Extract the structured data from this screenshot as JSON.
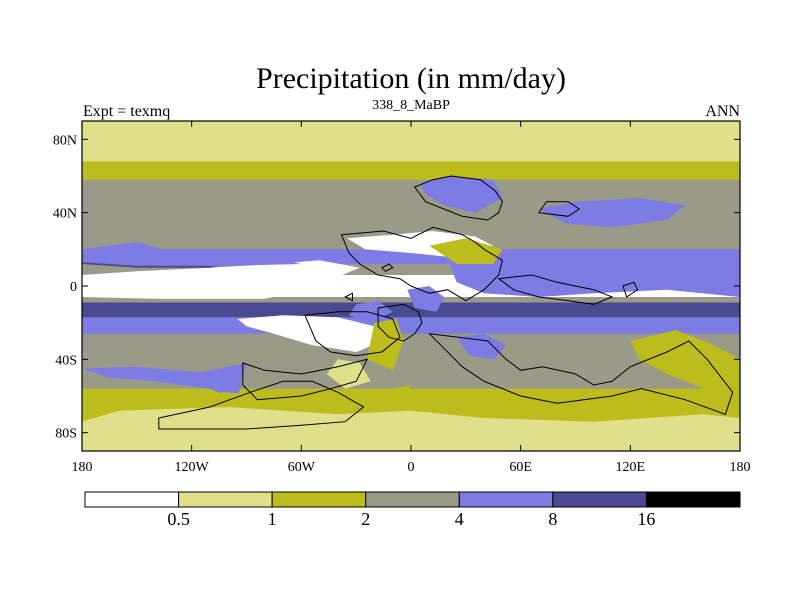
{
  "chart_data": {
    "type": "heatmap",
    "title": "Precipitation (in mm/day)",
    "subtitle_left": "Expt = texmq",
    "subtitle_center": "338_8_MaBP",
    "subtitle_right": "ANN",
    "x_range": [
      -180,
      180
    ],
    "y_range": [
      -90,
      90
    ],
    "x_ticks": [
      {
        "value": -180,
        "label": "180"
      },
      {
        "value": -120,
        "label": "120W"
      },
      {
        "value": -60,
        "label": "60W"
      },
      {
        "value": 0,
        "label": "0"
      },
      {
        "value": 60,
        "label": "60E"
      },
      {
        "value": 120,
        "label": "120E"
      },
      {
        "value": 180,
        "label": "180"
      }
    ],
    "y_ticks": [
      {
        "value": 80,
        "label": "80N"
      },
      {
        "value": 40,
        "label": "40N"
      },
      {
        "value": 0,
        "label": "0"
      },
      {
        "value": -40,
        "label": "40S"
      },
      {
        "value": -80,
        "label": "80S"
      }
    ],
    "levels": [
      0.5,
      1,
      2,
      4,
      8,
      16
    ],
    "level_labels": [
      "0.5",
      "1",
      "2",
      "4",
      "8",
      "16"
    ],
    "colors": [
      "#ffffff",
      "#e0e08a",
      "#bcbc1c",
      "#9a9a88",
      "#7c7ce4",
      "#4a4a90",
      "#000000"
    ],
    "zonal_bands": [
      {
        "lat_min": 82,
        "lat_max": 90,
        "level": 1
      },
      {
        "lat_min": 68,
        "lat_max": 82,
        "level": 1
      },
      {
        "lat_min": 58,
        "lat_max": 68,
        "level": 2
      },
      {
        "lat_min": 20,
        "lat_max": 58,
        "level": 3
      },
      {
        "lat_min": 12,
        "lat_max": 20,
        "level": 4
      },
      {
        "lat_min": 6,
        "lat_max": 12,
        "level": 3
      },
      {
        "lat_min": -6,
        "lat_max": 6,
        "level": 0
      },
      {
        "lat_min": -9,
        "lat_max": -6,
        "level": 3
      },
      {
        "lat_min": -17,
        "lat_max": -9,
        "level": 5
      },
      {
        "lat_min": -26,
        "lat_max": -17,
        "level": 4
      },
      {
        "lat_min": -32,
        "lat_max": -26,
        "level": 3
      },
      {
        "lat_min": -46,
        "lat_max": -32,
        "level": 3
      },
      {
        "lat_min": -56,
        "lat_max": -46,
        "level": 3
      },
      {
        "lat_min": -66,
        "lat_max": -56,
        "level": 2
      },
      {
        "lat_min": -80,
        "lat_max": -66,
        "level": 2
      },
      {
        "lat_min": -90,
        "lat_max": -80,
        "level": 1
      }
    ],
    "patches": [
      {
        "level": 0,
        "points": [
          [
            -180,
            6
          ],
          [
            -150,
            8
          ],
          [
            -110,
            10
          ],
          [
            -75,
            12
          ],
          [
            -50,
            14
          ],
          [
            -28,
            10
          ],
          [
            -40,
            5
          ],
          [
            -80,
            3
          ],
          [
            -130,
            2
          ],
          [
            -180,
            2
          ]
        ]
      },
      {
        "level": 0,
        "points": [
          [
            -180,
            -2
          ],
          [
            -130,
            -3
          ],
          [
            -90,
            -4
          ],
          [
            -60,
            -3
          ],
          [
            -80,
            -7
          ],
          [
            -140,
            -7
          ],
          [
            -180,
            -6
          ]
        ]
      },
      {
        "level": 0,
        "points": [
          [
            -95,
            -18
          ],
          [
            -70,
            -16
          ],
          [
            -40,
            -17
          ],
          [
            -20,
            -22
          ],
          [
            -15,
            -30
          ],
          [
            -30,
            -36
          ],
          [
            -55,
            -32
          ],
          [
            -75,
            -26
          ],
          [
            -90,
            -22
          ]
        ]
      },
      {
        "level": 0,
        "points": [
          [
            -35,
            26
          ],
          [
            -10,
            28
          ],
          [
            12,
            30
          ],
          [
            35,
            27
          ],
          [
            45,
            22
          ],
          [
            20,
            16
          ],
          [
            0,
            18
          ],
          [
            -25,
            20
          ]
        ]
      },
      {
        "level": 5,
        "points": [
          [
            -180,
            15
          ],
          [
            -150,
            14
          ],
          [
            -120,
            13
          ],
          [
            -100,
            12
          ],
          [
            -110,
            10
          ],
          [
            -150,
            10
          ],
          [
            -180,
            12
          ]
        ]
      },
      {
        "level": 5,
        "points": [
          [
            35,
            2
          ],
          [
            65,
            5
          ],
          [
            100,
            8
          ],
          [
            130,
            9
          ],
          [
            160,
            10
          ],
          [
            180,
            10
          ],
          [
            180,
            4
          ],
          [
            150,
            2
          ],
          [
            110,
            0
          ],
          [
            70,
            -2
          ],
          [
            45,
            -3
          ]
        ]
      },
      {
        "level": 4,
        "points": [
          [
            -180,
            20
          ],
          [
            -150,
            24
          ],
          [
            -130,
            18
          ],
          [
            -100,
            16
          ],
          [
            -70,
            14
          ],
          [
            -60,
            12
          ],
          [
            -100,
            11
          ],
          [
            -150,
            11
          ],
          [
            -180,
            13
          ]
        ]
      },
      {
        "level": 4,
        "points": [
          [
            20,
            15
          ],
          [
            60,
            18
          ],
          [
            100,
            14
          ],
          [
            140,
            12
          ],
          [
            180,
            14
          ],
          [
            180,
            -6
          ],
          [
            140,
            -2
          ],
          [
            100,
            -4
          ],
          [
            70,
            -6
          ],
          [
            40,
            -4
          ],
          [
            25,
            2
          ]
        ]
      },
      {
        "level": 4,
        "points": [
          [
            -2,
            -2
          ],
          [
            10,
            0
          ],
          [
            18,
            -6
          ],
          [
            14,
            -14
          ],
          [
            2,
            -12
          ]
        ]
      },
      {
        "level": 4,
        "points": [
          [
            -30,
            -10
          ],
          [
            -18,
            -8
          ],
          [
            -10,
            -14
          ],
          [
            -22,
            -20
          ],
          [
            -34,
            -16
          ]
        ]
      },
      {
        "level": 4,
        "points": [
          [
            5,
            56
          ],
          [
            20,
            60
          ],
          [
            45,
            58
          ],
          [
            50,
            48
          ],
          [
            35,
            40
          ],
          [
            18,
            44
          ],
          [
            8,
            50
          ]
        ]
      },
      {
        "level": 4,
        "points": [
          [
            70,
            42
          ],
          [
            90,
            46
          ],
          [
            125,
            48
          ],
          [
            150,
            44
          ],
          [
            140,
            36
          ],
          [
            110,
            32
          ],
          [
            85,
            34
          ]
        ]
      },
      {
        "level": 4,
        "points": [
          [
            -180,
            -45
          ],
          [
            -165,
            -50
          ],
          [
            -140,
            -52
          ],
          [
            -110,
            -56
          ],
          [
            -95,
            -62
          ],
          [
            -90,
            -42
          ],
          [
            -115,
            -47
          ],
          [
            -150,
            -44
          ]
        ]
      },
      {
        "level": 4,
        "points": [
          [
            25,
            -28
          ],
          [
            40,
            -26
          ],
          [
            52,
            -32
          ],
          [
            46,
            -40
          ],
          [
            32,
            -38
          ]
        ]
      },
      {
        "level": 2,
        "points": [
          [
            -180,
            -62
          ],
          [
            -140,
            -60
          ],
          [
            -100,
            -58
          ],
          [
            -60,
            -62
          ],
          [
            -20,
            -58
          ],
          [
            0,
            -54
          ],
          [
            -10,
            -70
          ],
          [
            -60,
            -76
          ],
          [
            -120,
            -74
          ],
          [
            -180,
            -72
          ]
        ]
      },
      {
        "level": 2,
        "points": [
          [
            120,
            -30
          ],
          [
            145,
            -24
          ],
          [
            165,
            -32
          ],
          [
            180,
            -40
          ],
          [
            180,
            -58
          ],
          [
            160,
            -56
          ],
          [
            140,
            -48
          ],
          [
            125,
            -40
          ]
        ]
      },
      {
        "level": 2,
        "points": [
          [
            -20,
            -20
          ],
          [
            -8,
            -18
          ],
          [
            -4,
            -30
          ],
          [
            -10,
            -46
          ],
          [
            -24,
            -40
          ]
        ]
      },
      {
        "level": 2,
        "points": [
          [
            10,
            22
          ],
          [
            30,
            26
          ],
          [
            50,
            20
          ],
          [
            45,
            12
          ],
          [
            25,
            12
          ]
        ]
      },
      {
        "level": 1,
        "points": [
          [
            -160,
            -68
          ],
          [
            -100,
            -66
          ],
          [
            -40,
            -70
          ],
          [
            0,
            -68
          ],
          [
            40,
            -72
          ],
          [
            100,
            -74
          ],
          [
            160,
            -70
          ],
          [
            180,
            -72
          ],
          [
            180,
            -82
          ],
          [
            -180,
            -82
          ],
          [
            -180,
            -74
          ]
        ]
      },
      {
        "level": 1,
        "points": [
          [
            -40,
            -40
          ],
          [
            -28,
            -42
          ],
          [
            -22,
            -52
          ],
          [
            -36,
            -56
          ],
          [
            -46,
            -48
          ]
        ]
      }
    ],
    "coastlines": [
      [
        [
          -38,
          28
        ],
        [
          -15,
          30
        ],
        [
          0,
          26
        ],
        [
          12,
          32
        ],
        [
          28,
          28
        ],
        [
          35,
          24
        ],
        [
          40,
          20
        ],
        [
          50,
          14
        ],
        [
          48,
          6
        ],
        [
          40,
          -2
        ],
        [
          30,
          -8
        ],
        [
          20,
          -2
        ],
        [
          10,
          -4
        ],
        [
          0,
          0
        ],
        [
          -6,
          4
        ],
        [
          -18,
          6
        ],
        [
          -28,
          12
        ],
        [
          -34,
          18
        ]
      ],
      [
        [
          2,
          54
        ],
        [
          12,
          58
        ],
        [
          22,
          60
        ],
        [
          38,
          58
        ],
        [
          46,
          52
        ],
        [
          50,
          46
        ],
        [
          48,
          40
        ],
        [
          42,
          36
        ],
        [
          28,
          38
        ],
        [
          18,
          42
        ],
        [
          8,
          46
        ]
      ],
      [
        [
          -18,
          -12
        ],
        [
          -4,
          -10
        ],
        [
          4,
          -14
        ],
        [
          6,
          -20
        ],
        [
          2,
          -26
        ],
        [
          -4,
          -30
        ],
        [
          -12,
          -28
        ],
        [
          -18,
          -22
        ]
      ],
      [
        [
          -58,
          -16
        ],
        [
          -40,
          -14
        ],
        [
          -24,
          -14
        ],
        [
          -10,
          -18
        ],
        [
          -6,
          -28
        ],
        [
          -16,
          -36
        ],
        [
          -30,
          -38
        ],
        [
          -44,
          -36
        ],
        [
          -52,
          -30
        ]
      ],
      [
        [
          10,
          -26
        ],
        [
          26,
          -28
        ],
        [
          42,
          -30
        ],
        [
          52,
          -40
        ],
        [
          60,
          -46
        ],
        [
          72,
          -44
        ],
        [
          90,
          -48
        ],
        [
          100,
          -54
        ],
        [
          110,
          -52
        ],
        [
          120,
          -44
        ],
        [
          140,
          -36
        ],
        [
          152,
          -30
        ],
        [
          162,
          -40
        ],
        [
          176,
          -58
        ],
        [
          172,
          -70
        ],
        [
          150,
          -62
        ],
        [
          126,
          -56
        ],
        [
          110,
          -60
        ],
        [
          80,
          -64
        ],
        [
          60,
          -60
        ],
        [
          40,
          -52
        ],
        [
          28,
          -44
        ],
        [
          18,
          -34
        ]
      ],
      [
        [
          -92,
          -42
        ],
        [
          -80,
          -46
        ],
        [
          -60,
          -48
        ],
        [
          -40,
          -44
        ],
        [
          -24,
          -40
        ],
        [
          -30,
          -52
        ],
        [
          -44,
          -56
        ],
        [
          -60,
          -60
        ],
        [
          -84,
          -62
        ],
        [
          -92,
          -54
        ]
      ],
      [
        [
          -138,
          -72
        ],
        [
          -110,
          -66
        ],
        [
          -88,
          -58
        ],
        [
          -70,
          -52
        ],
        [
          -54,
          -52
        ],
        [
          -40,
          -58
        ],
        [
          -26,
          -66
        ],
        [
          -36,
          -74
        ],
        [
          -60,
          -76
        ],
        [
          -90,
          -78
        ],
        [
          -120,
          -78
        ],
        [
          -138,
          -78
        ]
      ],
      [
        [
          70,
          40
        ],
        [
          86,
          38
        ],
        [
          92,
          42
        ],
        [
          86,
          46
        ],
        [
          74,
          46
        ]
      ],
      [
        [
          48,
          4
        ],
        [
          66,
          6
        ],
        [
          80,
          2
        ],
        [
          100,
          -2
        ],
        [
          110,
          -6
        ],
        [
          100,
          -10
        ],
        [
          86,
          -8
        ],
        [
          70,
          -6
        ],
        [
          56,
          -2
        ]
      ],
      [
        [
          118,
          -6
        ],
        [
          124,
          -2
        ],
        [
          122,
          2
        ],
        [
          116,
          0
        ]
      ],
      [
        [
          -14,
          8
        ],
        [
          -10,
          10
        ],
        [
          -12,
          12
        ],
        [
          -16,
          10
        ]
      ],
      [
        [
          -36,
          -6
        ],
        [
          -32,
          -4
        ],
        [
          -32,
          -8
        ]
      ]
    ]
  }
}
